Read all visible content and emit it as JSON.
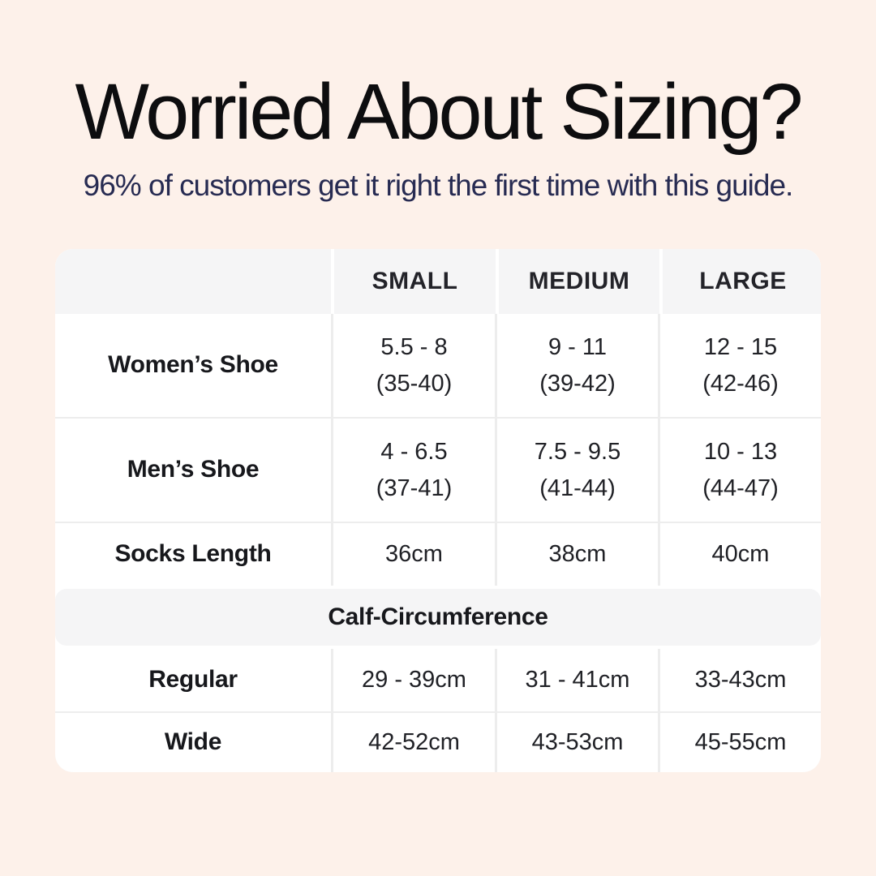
{
  "page": {
    "title": "Worried About Sizing?",
    "subtitle": "96% of customers get it right the first time with this guide.",
    "background_color": "#fdf1ea",
    "title_color": "#0d0d0f",
    "subtitle_color": "#272b52"
  },
  "table": {
    "header_bg": "#f5f5f6",
    "body_bg": "#ffffff",
    "divider_color": "#ededed",
    "columns": [
      "",
      "SMALL",
      "MEDIUM",
      "LARGE"
    ],
    "rows_top": [
      {
        "label": "Women’s Shoe",
        "cells": [
          {
            "line1": "5.5 - 8",
            "line2": "(35-40)"
          },
          {
            "line1": "9 - 11",
            "line2": "(39-42)"
          },
          {
            "line1": "12 - 15",
            "line2": "(42-46)"
          }
        ]
      },
      {
        "label": "Men’s Shoe",
        "cells": [
          {
            "line1": "4 - 6.5",
            "line2": "(37-41)"
          },
          {
            "line1": "7.5 - 9.5",
            "line2": "(41-44)"
          },
          {
            "line1": "10 - 13",
            "line2": "(44-47)"
          }
        ]
      },
      {
        "label": "Socks Length",
        "cells": [
          {
            "value": "36cm"
          },
          {
            "value": "38cm"
          },
          {
            "value": "40cm"
          }
        ]
      }
    ],
    "section_header": "Calf-Circumference",
    "rows_bottom": [
      {
        "label": "Regular",
        "cells": [
          {
            "value": "29 - 39cm"
          },
          {
            "value": "31 - 41cm"
          },
          {
            "value": "33-43cm"
          }
        ]
      },
      {
        "label": "Wide",
        "cells": [
          {
            "value": "42-52cm"
          },
          {
            "value": "43-53cm"
          },
          {
            "value": "45-55cm"
          }
        ]
      }
    ]
  },
  "chart_data": {
    "type": "table",
    "title": "Worried About Sizing?",
    "subtitle": "96% of customers get it right the first time with this guide.",
    "columns": [
      "",
      "SMALL",
      "MEDIUM",
      "LARGE"
    ],
    "rows": [
      [
        "Women’s Shoe",
        "5.5 - 8 (35-40)",
        "9 - 11 (39-42)",
        "12 - 15 (42-46)"
      ],
      [
        "Men’s Shoe",
        "4 - 6.5 (37-41)",
        "7.5 - 9.5 (41-44)",
        "10 - 13 (44-47)"
      ],
      [
        "Socks Length",
        "36cm",
        "38cm",
        "40cm"
      ],
      [
        "Calf-Circumference",
        "",
        "",
        ""
      ],
      [
        "Regular",
        "29 - 39cm",
        "31 - 41cm",
        "33-43cm"
      ],
      [
        "Wide",
        "42-52cm",
        "43-53cm",
        "45-55cm"
      ]
    ]
  }
}
